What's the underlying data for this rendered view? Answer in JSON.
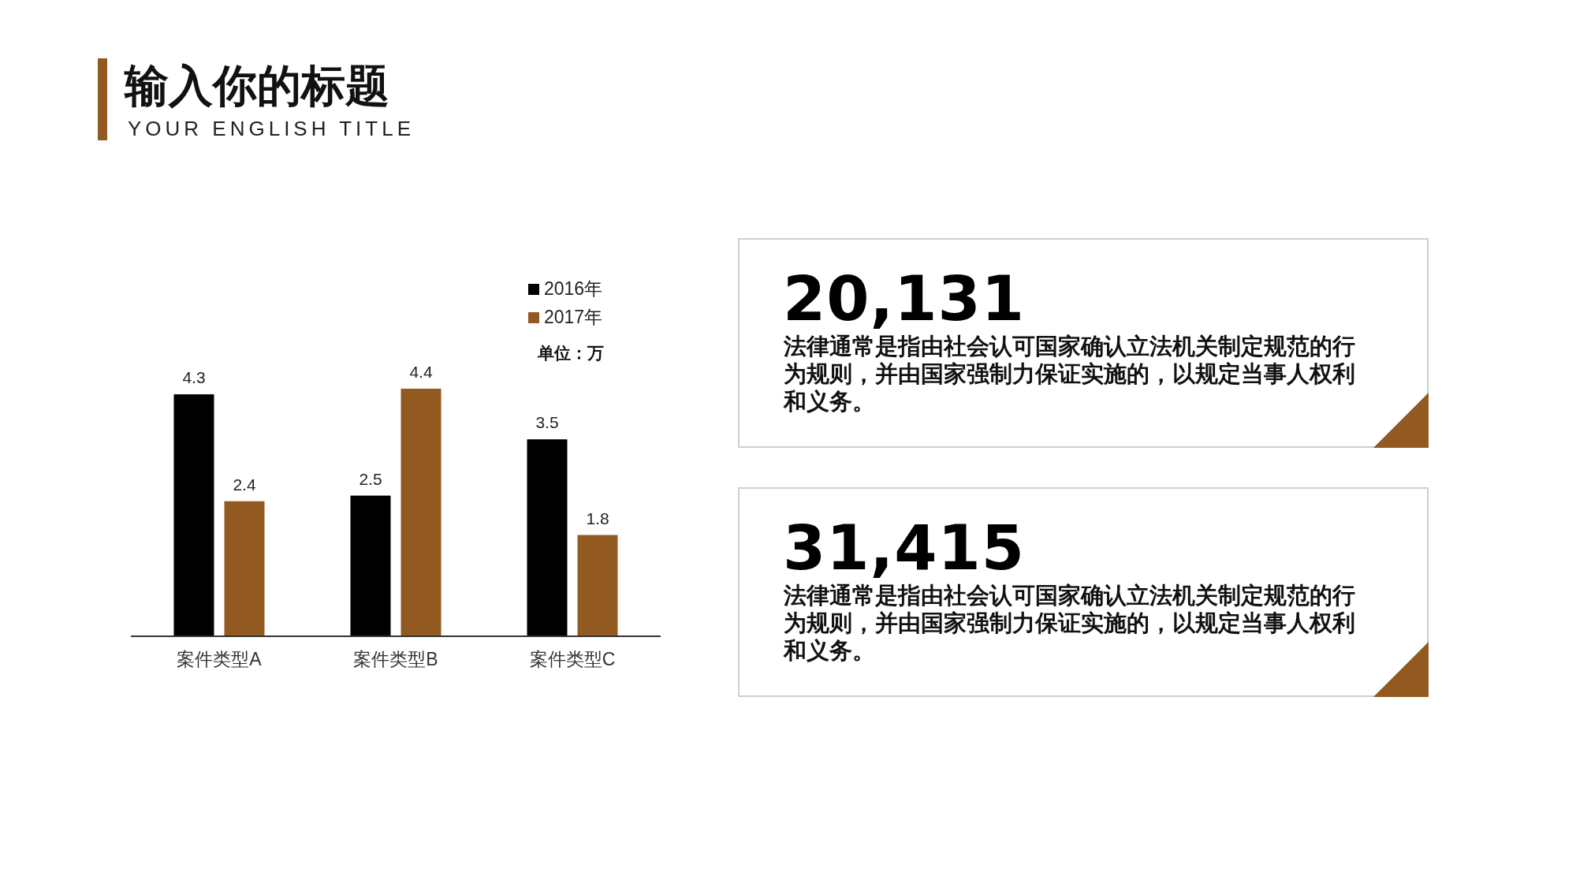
{
  "chart_data": [
    {
      "type": "bar",
      "title": "输入你的标题",
      "subtitle": "YOUR ENGLISH TITLE",
      "categories": [
        "案件类型A",
        "案件类型B",
        "案件类型C"
      ],
      "series": [
        {
          "name": "2016年",
          "color": "#000000",
          "values": [
            4.3,
            2.5,
            3.5
          ]
        },
        {
          "name": "2017年",
          "color": "#925a21",
          "values": [
            2.4,
            4.4,
            1.8
          ]
        }
      ],
      "data_labels": true,
      "legend": "top right",
      "annotations": [
        "单位：万"
      ]
    },
    {
      "type": "other",
      "title": "20,131",
      "annotations": [
        "法律通常是指由社会认可国家确认立法机关制定规范的行为规则，并由国家强制力保证实施的，以规定当事人权利和义务。"
      ]
    },
    {
      "type": "other",
      "title": "31,415",
      "annotations": [
        "法律通常是指由社会认可国家确认立法机关制定规范的行为规则，并由国家强制力保证实施的，以规定当事人权利和义务。"
      ]
    }
  ]
}
